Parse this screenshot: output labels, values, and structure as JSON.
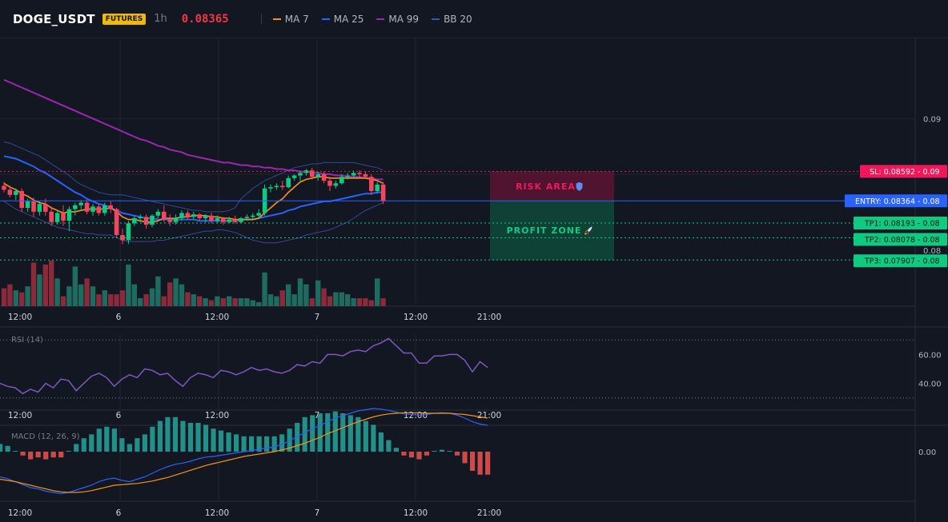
{
  "header": {
    "symbol": "DOGE_USDT",
    "badge": "FUTURES",
    "interval": "1h",
    "price": "0.08365",
    "legend": [
      {
        "label": "MA 7",
        "color": "#f7931a"
      },
      {
        "label": "MA 25",
        "color": "#2962ff"
      },
      {
        "label": "MA 99",
        "color": "#9c27b0"
      },
      {
        "label": "BB 20",
        "color": "#1e3a8a"
      }
    ]
  },
  "x_ticks": [
    "12:00",
    "6",
    "12:00",
    "7",
    "12:00",
    "21:00"
  ],
  "main_pane": {
    "ylim": [
      0.0755,
      0.0962
    ],
    "y_ticks": [
      "0.09",
      "0.08"
    ],
    "levels": {
      "sl": {
        "label": "SL: 0.08592",
        "value": 0.08592,
        "axis": "0.09"
      },
      "entry": {
        "label": "ENTRY: 0.08364",
        "value": 0.08364,
        "axis": "0.08"
      },
      "tp1": {
        "label": "TP1: 0.08193",
        "value": 0.08193,
        "axis": "0.08"
      },
      "tp2": {
        "label": "TP2: 0.08078",
        "value": 0.08078,
        "axis": "0.08"
      },
      "tp3": {
        "label": "TP3: 0.07907",
        "value": 0.07907,
        "axis": "0.08"
      }
    },
    "risk_label": "RISK AREA",
    "profit_label": "PROFIT ZONE",
    "colors": {
      "up": "#26a69a",
      "upCandle": "#0ecb81",
      "down": "#f6465d",
      "sl": "#f0185a",
      "entry": "#2962ff",
      "tp": "#0ecb81"
    }
  },
  "rsi_pane": {
    "title": "RSI (14)",
    "ylim": [
      26,
      74
    ],
    "y_ticks": [
      "60.00",
      "40.00"
    ],
    "values": [
      40,
      38,
      37,
      33,
      36,
      34,
      40,
      37,
      43,
      42,
      35,
      40,
      45,
      47,
      44,
      38,
      43,
      46,
      44,
      50,
      49,
      46,
      47,
      42,
      38,
      44,
      47,
      46,
      44,
      49,
      48,
      46,
      48,
      51,
      49,
      50,
      48,
      47,
      49,
      53,
      52,
      55,
      54,
      60,
      60,
      59,
      62,
      63,
      62,
      66,
      68,
      71,
      66,
      61,
      61,
      54,
      54,
      59,
      59,
      60,
      60,
      56,
      48,
      55,
      51
    ],
    "line_color": "#7e57c2"
  },
  "macd_pane": {
    "title": "MACD (12, 26, 9)",
    "y_ticks": [
      "0.00"
    ],
    "macd": [
      -0.00042,
      -0.00045,
      -0.0005,
      -0.00055,
      -0.0006,
      -0.00062,
      -0.00066,
      -0.00068,
      -0.0007,
      -0.00068,
      -0.00064,
      -0.0006,
      -0.00056,
      -0.0005,
      -0.00046,
      -0.00044,
      -0.00048,
      -0.0005,
      -0.00046,
      -0.00042,
      -0.00036,
      -0.0003,
      -0.00025,
      -0.00021,
      -0.00019,
      -0.00016,
      -0.00012,
      -9e-05,
      -8e-05,
      -6e-05,
      -4e-05,
      -2e-05,
      0.0,
      2e-05,
      4e-05,
      6e-05,
      8e-05,
      0.00012,
      0.00018,
      0.00025,
      0.00032,
      0.00038,
      0.00044,
      0.0005,
      0.00056,
      0.0006,
      0.00064,
      0.00068,
      0.0007,
      0.00072,
      0.00071,
      0.00069,
      0.00066,
      0.00063,
      0.00062,
      0.00061,
      0.00062,
      0.00064,
      0.00065,
      0.00064,
      0.00061,
      0.00056,
      0.0005,
      0.00046,
      0.00044
    ],
    "signal": [
      -0.00046,
      -0.00048,
      -0.0005,
      -0.00053,
      -0.00056,
      -0.00059,
      -0.00062,
      -0.00065,
      -0.00067,
      -0.00068,
      -0.00068,
      -0.00067,
      -0.00065,
      -0.00062,
      -0.00059,
      -0.00056,
      -0.00055,
      -0.00054,
      -0.00053,
      -0.00051,
      -0.00049,
      -0.00046,
      -0.00043,
      -0.00039,
      -0.00035,
      -0.00031,
      -0.00027,
      -0.00023,
      -0.0002,
      -0.00017,
      -0.00014,
      -0.00011,
      -8e-05,
      -6e-05,
      -4e-05,
      -2e-05,
      0.0,
      3e-05,
      6e-05,
      0.0001,
      0.00014,
      0.00019,
      0.00024,
      0.0003,
      0.00035,
      0.0004,
      0.00045,
      0.0005,
      0.00054,
      0.00058,
      0.00061,
      0.00063,
      0.00064,
      0.00065,
      0.00065,
      0.00065,
      0.00064,
      0.00064,
      0.00064,
      0.00064,
      0.00063,
      0.00062,
      0.0006,
      0.00058,
      0.00056
    ],
    "macd_color": "#2962ff",
    "signal_color": "#f7931a",
    "hist_up": "#26a69a",
    "hist_down": "#ef5350"
  },
  "chart_data": {
    "type": "candlestick",
    "title": "DOGE_USDT",
    "interval": "1h",
    "x_labels": [
      "12:00",
      "6",
      "12:00",
      "7",
      "12:00",
      "21:00"
    ],
    "candles": [
      {
        "o": 0.0848,
        "h": 0.0851,
        "l": 0.0843,
        "c": 0.0845
      },
      {
        "o": 0.0845,
        "h": 0.0848,
        "l": 0.0839,
        "c": 0.0841
      },
      {
        "o": 0.0841,
        "h": 0.0846,
        "l": 0.0837,
        "c": 0.0844
      },
      {
        "o": 0.0844,
        "h": 0.0846,
        "l": 0.0828,
        "c": 0.0831
      },
      {
        "o": 0.0831,
        "h": 0.0838,
        "l": 0.0828,
        "c": 0.0836
      },
      {
        "o": 0.0836,
        "h": 0.0839,
        "l": 0.0824,
        "c": 0.0828
      },
      {
        "o": 0.0828,
        "h": 0.0836,
        "l": 0.0825,
        "c": 0.0834
      },
      {
        "o": 0.0834,
        "h": 0.0838,
        "l": 0.0825,
        "c": 0.0828
      },
      {
        "o": 0.0828,
        "h": 0.0832,
        "l": 0.0817,
        "c": 0.082
      },
      {
        "o": 0.082,
        "h": 0.0829,
        "l": 0.0818,
        "c": 0.0827
      },
      {
        "o": 0.0827,
        "h": 0.0833,
        "l": 0.0817,
        "c": 0.0821
      },
      {
        "o": 0.0821,
        "h": 0.0832,
        "l": 0.0813,
        "c": 0.083
      },
      {
        "o": 0.083,
        "h": 0.0835,
        "l": 0.0825,
        "c": 0.0833
      },
      {
        "o": 0.0833,
        "h": 0.0837,
        "l": 0.083,
        "c": 0.0835
      },
      {
        "o": 0.0835,
        "h": 0.0837,
        "l": 0.0826,
        "c": 0.0828
      },
      {
        "o": 0.0828,
        "h": 0.0834,
        "l": 0.0825,
        "c": 0.0832
      },
      {
        "o": 0.0832,
        "h": 0.0834,
        "l": 0.0825,
        "c": 0.0827
      },
      {
        "o": 0.0827,
        "h": 0.0835,
        "l": 0.0825,
        "c": 0.0833
      },
      {
        "o": 0.0833,
        "h": 0.0836,
        "l": 0.0827,
        "c": 0.083
      },
      {
        "o": 0.083,
        "h": 0.0831,
        "l": 0.0808,
        "c": 0.081
      },
      {
        "o": 0.081,
        "h": 0.0815,
        "l": 0.0803,
        "c": 0.0806
      },
      {
        "o": 0.0806,
        "h": 0.0821,
        "l": 0.0803,
        "c": 0.0819
      },
      {
        "o": 0.0819,
        "h": 0.0825,
        "l": 0.0817,
        "c": 0.0823
      },
      {
        "o": 0.0823,
        "h": 0.0826,
        "l": 0.082,
        "c": 0.0824
      },
      {
        "o": 0.0824,
        "h": 0.0826,
        "l": 0.0815,
        "c": 0.0818
      },
      {
        "o": 0.0818,
        "h": 0.0826,
        "l": 0.0816,
        "c": 0.0825
      },
      {
        "o": 0.0825,
        "h": 0.083,
        "l": 0.0823,
        "c": 0.0828
      },
      {
        "o": 0.0828,
        "h": 0.0833,
        "l": 0.082,
        "c": 0.0822
      },
      {
        "o": 0.0822,
        "h": 0.0826,
        "l": 0.0817,
        "c": 0.082
      },
      {
        "o": 0.082,
        "h": 0.0826,
        "l": 0.0818,
        "c": 0.0823
      },
      {
        "o": 0.0823,
        "h": 0.0829,
        "l": 0.0821,
        "c": 0.0827
      },
      {
        "o": 0.0827,
        "h": 0.0829,
        "l": 0.0822,
        "c": 0.0824
      },
      {
        "o": 0.0824,
        "h": 0.0828,
        "l": 0.0822,
        "c": 0.0826
      },
      {
        "o": 0.0826,
        "h": 0.0827,
        "l": 0.0821,
        "c": 0.0823
      },
      {
        "o": 0.0823,
        "h": 0.0826,
        "l": 0.082,
        "c": 0.0825
      },
      {
        "o": 0.0825,
        "h": 0.0827,
        "l": 0.0819,
        "c": 0.0821
      },
      {
        "o": 0.0821,
        "h": 0.0825,
        "l": 0.0819,
        "c": 0.0823
      },
      {
        "o": 0.0823,
        "h": 0.0824,
        "l": 0.0818,
        "c": 0.082
      },
      {
        "o": 0.082,
        "h": 0.0824,
        "l": 0.0819,
        "c": 0.0822
      },
      {
        "o": 0.0822,
        "h": 0.0825,
        "l": 0.0819,
        "c": 0.082
      },
      {
        "o": 0.082,
        "h": 0.0824,
        "l": 0.0819,
        "c": 0.0823
      },
      {
        "o": 0.0823,
        "h": 0.0826,
        "l": 0.0821,
        "c": 0.0824
      },
      {
        "o": 0.0824,
        "h": 0.0827,
        "l": 0.0822,
        "c": 0.0825
      },
      {
        "o": 0.0825,
        "h": 0.083,
        "l": 0.0823,
        "c": 0.0827
      },
      {
        "o": 0.0827,
        "h": 0.0849,
        "l": 0.0825,
        "c": 0.0846
      },
      {
        "o": 0.0846,
        "h": 0.0849,
        "l": 0.0843,
        "c": 0.0847
      },
      {
        "o": 0.0847,
        "h": 0.085,
        "l": 0.0845,
        "c": 0.0848
      },
      {
        "o": 0.0848,
        "h": 0.0852,
        "l": 0.0845,
        "c": 0.0847
      },
      {
        "o": 0.0847,
        "h": 0.0856,
        "l": 0.0846,
        "c": 0.0854
      },
      {
        "o": 0.0854,
        "h": 0.0857,
        "l": 0.0852,
        "c": 0.0856
      },
      {
        "o": 0.0856,
        "h": 0.086,
        "l": 0.0852,
        "c": 0.0858
      },
      {
        "o": 0.0858,
        "h": 0.0861,
        "l": 0.0856,
        "c": 0.086
      },
      {
        "o": 0.086,
        "h": 0.0862,
        "l": 0.0853,
        "c": 0.0855
      },
      {
        "o": 0.0855,
        "h": 0.0859,
        "l": 0.0852,
        "c": 0.0857
      },
      {
        "o": 0.0857,
        "h": 0.0859,
        "l": 0.085,
        "c": 0.0852
      },
      {
        "o": 0.0852,
        "h": 0.0855,
        "l": 0.0844,
        "c": 0.0848
      },
      {
        "o": 0.0848,
        "h": 0.0852,
        "l": 0.0846,
        "c": 0.085
      },
      {
        "o": 0.085,
        "h": 0.0857,
        "l": 0.0849,
        "c": 0.0855
      },
      {
        "o": 0.0855,
        "h": 0.0858,
        "l": 0.0853,
        "c": 0.0856
      },
      {
        "o": 0.0856,
        "h": 0.086,
        "l": 0.0854,
        "c": 0.0858
      },
      {
        "o": 0.0858,
        "h": 0.086,
        "l": 0.0855,
        "c": 0.0857
      },
      {
        "o": 0.0857,
        "h": 0.0859,
        "l": 0.0854,
        "c": 0.0855
      },
      {
        "o": 0.0855,
        "h": 0.0857,
        "l": 0.0841,
        "c": 0.0844
      },
      {
        "o": 0.0844,
        "h": 0.0851,
        "l": 0.0842,
        "c": 0.0849
      },
      {
        "o": 0.0849,
        "h": 0.0851,
        "l": 0.0834,
        "c": 0.0836
      }
    ],
    "volume": [
      9,
      11,
      8,
      7,
      10,
      22,
      16,
      21,
      23,
      14,
      5,
      10,
      20,
      11,
      14,
      10,
      6,
      8,
      6,
      6,
      8,
      21,
      11,
      4,
      6,
      9,
      15,
      5,
      12,
      14,
      11,
      7,
      6,
      5,
      4,
      3,
      5,
      4,
      5,
      4,
      4,
      4,
      3,
      2,
      17,
      6,
      5,
      8,
      11,
      6,
      14,
      11,
      4,
      13,
      9,
      5,
      7,
      7,
      6,
      4,
      4,
      4,
      3,
      14,
      4
    ],
    "ma7": [
      0.085,
      0.0847,
      0.0845,
      0.0842,
      0.084,
      0.0837,
      0.0835,
      0.0834,
      0.0831,
      0.0829,
      0.0827,
      0.0828,
      0.0828,
      0.0829,
      0.083,
      0.083,
      0.083,
      0.083,
      0.0831,
      0.0828,
      0.0824,
      0.0822,
      0.0822,
      0.0821,
      0.082,
      0.082,
      0.0821,
      0.0823,
      0.0823,
      0.0823,
      0.0824,
      0.0824,
      0.0825,
      0.0825,
      0.0825,
      0.0824,
      0.0824,
      0.0823,
      0.0823,
      0.0822,
      0.0822,
      0.0822,
      0.0822,
      0.0823,
      0.0827,
      0.0831,
      0.0835,
      0.0838,
      0.0843,
      0.0847,
      0.0851,
      0.0853,
      0.0854,
      0.0855,
      0.0855,
      0.0854,
      0.0854,
      0.0854,
      0.0854,
      0.0854,
      0.0854,
      0.0854,
      0.0853,
      0.0852,
      0.085
    ],
    "ma25": [
      0.0871,
      0.087,
      0.0869,
      0.0867,
      0.0865,
      0.0863,
      0.086,
      0.0858,
      0.0855,
      0.0852,
      0.0849,
      0.0846,
      0.0843,
      0.0841,
      0.0838,
      0.0836,
      0.0834,
      0.0833,
      0.0831,
      0.0829,
      0.0827,
      0.0826,
      0.0825,
      0.0824,
      0.0823,
      0.0823,
      0.0822,
      0.0822,
      0.0822,
      0.0822,
      0.0822,
      0.0822,
      0.0822,
      0.0821,
      0.0821,
      0.0821,
      0.0821,
      0.0821,
      0.0821,
      0.0821,
      0.0822,
      0.0822,
      0.0822,
      0.0823,
      0.0824,
      0.0825,
      0.0826,
      0.0827,
      0.0829,
      0.083,
      0.0832,
      0.0833,
      0.0834,
      0.0835,
      0.0836,
      0.0836,
      0.0837,
      0.0838,
      0.0839,
      0.084,
      0.0841,
      0.0842,
      0.0842,
      0.0843,
      0.0843
    ],
    "ma99": [
      0.093,
      0.0928,
      0.0926,
      0.0924,
      0.0922,
      0.092,
      0.0918,
      0.0916,
      0.0914,
      0.0912,
      0.091,
      0.0908,
      0.0906,
      0.0904,
      0.0902,
      0.09,
      0.0898,
      0.0896,
      0.0894,
      0.0892,
      0.089,
      0.0888,
      0.0886,
      0.0884,
      0.0883,
      0.0881,
      0.0879,
      0.0878,
      0.0876,
      0.0875,
      0.0874,
      0.0872,
      0.0871,
      0.087,
      0.0869,
      0.0868,
      0.0867,
      0.0866,
      0.0866,
      0.0865,
      0.0864,
      0.0864,
      0.0863,
      0.0863,
      0.0862,
      0.0862,
      0.0861,
      0.0861,
      0.086,
      0.086,
      0.0859,
      0.0859,
      0.0858,
      0.0858,
      0.0857,
      0.0857,
      0.0856,
      0.0856,
      0.0855,
      0.0855,
      0.0855,
      0.0854,
      0.0854,
      0.0853,
      0.0853
    ],
    "bb_upper": [
      0.0882,
      0.0881,
      0.0879,
      0.0877,
      0.0875,
      0.0873,
      0.0871,
      0.0868,
      0.0865,
      0.0862,
      0.0859,
      0.0856,
      0.0852,
      0.0849,
      0.0847,
      0.0845,
      0.0843,
      0.0842,
      0.0841,
      0.0841,
      0.0841,
      0.084,
      0.0839,
      0.0838,
      0.0837,
      0.0836,
      0.0835,
      0.0834,
      0.0833,
      0.0832,
      0.0831,
      0.083,
      0.0829,
      0.0829,
      0.0828,
      0.0828,
      0.0828,
      0.0828,
      0.0829,
      0.0831,
      0.0838,
      0.0842,
      0.0846,
      0.0849,
      0.0852,
      0.0854,
      0.0856,
      0.0858,
      0.086,
      0.0862,
      0.0863,
      0.0864,
      0.0865,
      0.0865,
      0.0866,
      0.0866,
      0.0866,
      0.0866,
      0.0866,
      0.0866,
      0.0865,
      0.0864,
      0.0863,
      0.0862,
      0.086
    ],
    "bb_lower": [
      0.0836,
      0.0833,
      0.083,
      0.0828,
      0.0826,
      0.0824,
      0.0822,
      0.082,
      0.0818,
      0.0816,
      0.0815,
      0.0814,
      0.0813,
      0.0812,
      0.0811,
      0.0811,
      0.081,
      0.081,
      0.081,
      0.0808,
      0.0806,
      0.0805,
      0.0805,
      0.0805,
      0.0805,
      0.0805,
      0.0806,
      0.0806,
      0.0807,
      0.0808,
      0.0809,
      0.081,
      0.0811,
      0.0812,
      0.0813,
      0.0813,
      0.0814,
      0.0814,
      0.0813,
      0.0812,
      0.081,
      0.0808,
      0.0806,
      0.0805,
      0.0804,
      0.0804,
      0.0804,
      0.0805,
      0.0806,
      0.0807,
      0.0808,
      0.081,
      0.0811,
      0.0812,
      0.0813,
      0.0814,
      0.0816,
      0.0818,
      0.082,
      0.0823,
      0.0826,
      0.0829,
      0.0831,
      0.0833,
      0.0835
    ]
  }
}
